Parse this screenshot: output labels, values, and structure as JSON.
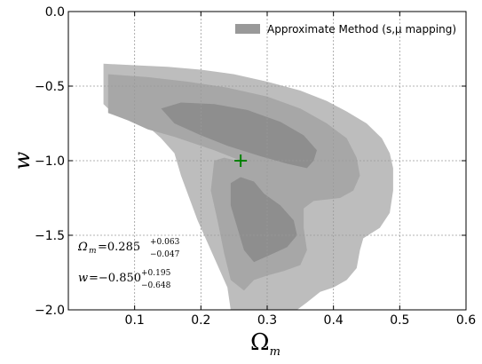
{
  "chart_data": {
    "type": "contour",
    "xlabel": "Ω",
    "xlabel_sub": "m",
    "ylabel": "w",
    "xlim": [
      0.0,
      0.6
    ],
    "ylim": [
      -2.0,
      0.0
    ],
    "x_ticks": [
      "0.1",
      "0.2",
      "0.3",
      "0.4",
      "0.5",
      "0.6"
    ],
    "y_ticks": [
      "0.0",
      "−0.5",
      "−1.0",
      "−1.5",
      "−2.0"
    ],
    "grid": true,
    "legend": {
      "label": "Approximate Method (s,μ mapping)",
      "position": "top-right",
      "color": "#999999"
    },
    "best_fit": {
      "x": 0.26,
      "y": -1.0,
      "color": "#008000",
      "marker": "plus"
    },
    "annotations": [
      {
        "name": "omega-m-value",
        "symbol": "Ω",
        "sub": "m",
        "value": "=0.285",
        "plus": "+0.063",
        "minus": "−0.047"
      },
      {
        "name": "w-value",
        "symbol": "w",
        "sub": "",
        "value": "=−0.850",
        "plus": "+0.195",
        "minus": "−0.648"
      }
    ],
    "contour_levels": [
      {
        "level": "outer",
        "color": "#bdbdbd",
        "polygon": [
          [
            0.053,
            -0.35
          ],
          [
            0.1,
            -0.36
          ],
          [
            0.15,
            -0.37
          ],
          [
            0.2,
            -0.39
          ],
          [
            0.25,
            -0.42
          ],
          [
            0.3,
            -0.47
          ],
          [
            0.35,
            -0.53
          ],
          [
            0.39,
            -0.6
          ],
          [
            0.42,
            -0.67
          ],
          [
            0.45,
            -0.75
          ],
          [
            0.473,
            -0.85
          ],
          [
            0.485,
            -0.95
          ],
          [
            0.49,
            -1.05
          ],
          [
            0.49,
            -1.2
          ],
          [
            0.485,
            -1.35
          ],
          [
            0.47,
            -1.45
          ],
          [
            0.445,
            -1.52
          ],
          [
            0.44,
            -1.6
          ],
          [
            0.435,
            -1.72
          ],
          [
            0.42,
            -1.8
          ],
          [
            0.4,
            -1.85
          ],
          [
            0.38,
            -1.88
          ],
          [
            0.36,
            -1.95
          ],
          [
            0.345,
            -2.0
          ],
          [
            0.245,
            -2.0
          ],
          [
            0.24,
            -1.85
          ],
          [
            0.22,
            -1.65
          ],
          [
            0.195,
            -1.4
          ],
          [
            0.17,
            -1.1
          ],
          [
            0.16,
            -0.95
          ],
          [
            0.14,
            -0.85
          ],
          [
            0.12,
            -0.77
          ],
          [
            0.06,
            -0.65
          ],
          [
            0.053,
            -0.62
          ]
        ]
      },
      {
        "level": "middle",
        "color": "#a7a7a7",
        "polygon": [
          [
            0.06,
            -0.42
          ],
          [
            0.12,
            -0.44
          ],
          [
            0.18,
            -0.47
          ],
          [
            0.24,
            -0.51
          ],
          [
            0.3,
            -0.57
          ],
          [
            0.35,
            -0.65
          ],
          [
            0.39,
            -0.75
          ],
          [
            0.42,
            -0.85
          ],
          [
            0.435,
            -0.98
          ],
          [
            0.44,
            -1.1
          ],
          [
            0.43,
            -1.2
          ],
          [
            0.41,
            -1.25
          ],
          [
            0.37,
            -1.27
          ],
          [
            0.355,
            -1.32
          ],
          [
            0.355,
            -1.45
          ],
          [
            0.36,
            -1.6
          ],
          [
            0.35,
            -1.7
          ],
          [
            0.325,
            -1.74
          ],
          [
            0.3,
            -1.77
          ],
          [
            0.28,
            -1.8
          ],
          [
            0.265,
            -1.87
          ],
          [
            0.245,
            -1.8
          ],
          [
            0.235,
            -1.62
          ],
          [
            0.225,
            -1.4
          ],
          [
            0.215,
            -1.2
          ],
          [
            0.22,
            -1.0
          ],
          [
            0.235,
            -0.98
          ],
          [
            0.275,
            -1.02
          ],
          [
            0.28,
            -1.05
          ],
          [
            0.26,
            -1.0
          ],
          [
            0.22,
            -0.93
          ],
          [
            0.16,
            -0.84
          ],
          [
            0.12,
            -0.79
          ],
          [
            0.09,
            -0.73
          ],
          [
            0.06,
            -0.68
          ]
        ]
      },
      {
        "level": "inner-upper",
        "color": "#8e8e8e",
        "polygon": [
          [
            0.14,
            -0.65
          ],
          [
            0.17,
            -0.61
          ],
          [
            0.22,
            -0.62
          ],
          [
            0.27,
            -0.66
          ],
          [
            0.32,
            -0.74
          ],
          [
            0.355,
            -0.83
          ],
          [
            0.375,
            -0.93
          ],
          [
            0.37,
            -1.0
          ],
          [
            0.36,
            -1.05
          ],
          [
            0.33,
            -1.02
          ],
          [
            0.29,
            -0.97
          ],
          [
            0.24,
            -0.9
          ],
          [
            0.2,
            -0.83
          ],
          [
            0.16,
            -0.75
          ]
        ]
      },
      {
        "level": "inner-lower",
        "color": "#8e8e8e",
        "polygon": [
          [
            0.245,
            -1.15
          ],
          [
            0.26,
            -1.11
          ],
          [
            0.28,
            -1.14
          ],
          [
            0.295,
            -1.22
          ],
          [
            0.32,
            -1.3
          ],
          [
            0.34,
            -1.4
          ],
          [
            0.345,
            -1.5
          ],
          [
            0.33,
            -1.58
          ],
          [
            0.31,
            -1.62
          ],
          [
            0.29,
            -1.66
          ],
          [
            0.28,
            -1.68
          ],
          [
            0.265,
            -1.6
          ],
          [
            0.255,
            -1.45
          ],
          [
            0.245,
            -1.3
          ]
        ]
      }
    ]
  }
}
